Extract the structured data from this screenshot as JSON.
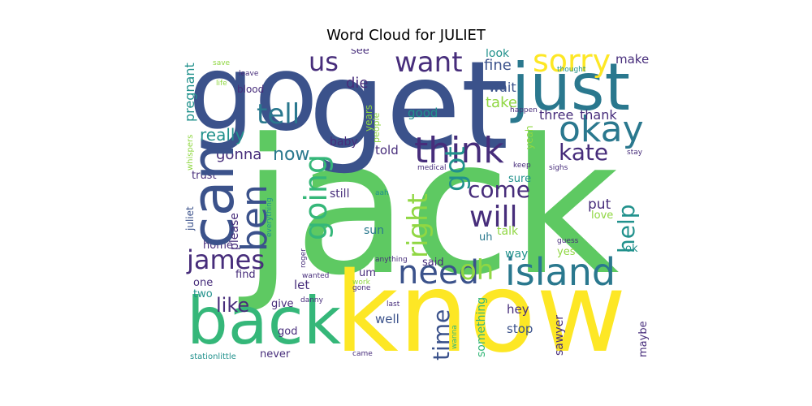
{
  "title": "Word Cloud for JULIET",
  "palette": {
    "yellow": "#fde725",
    "green": "#5ec962",
    "teal": "#21918c",
    "blue": "#3b528b",
    "purple": "#472d7b",
    "dark": "#440154",
    "lightgreen": "#90d743",
    "cyan": "#2a788e",
    "seagreen": "#35b779"
  },
  "words": [
    {
      "text": "jack",
      "color": "green"
    },
    {
      "text": "know",
      "color": "yellow"
    },
    {
      "text": "get",
      "color": "blue"
    },
    {
      "text": "go",
      "color": "blue"
    },
    {
      "text": "just",
      "color": "cyan"
    },
    {
      "text": "back",
      "color": "seagreen"
    },
    {
      "text": "can",
      "color": "blue"
    },
    {
      "text": "island",
      "color": "cyan"
    },
    {
      "text": "okay",
      "color": "cyan"
    },
    {
      "text": "think",
      "color": "purple"
    },
    {
      "text": "need",
      "color": "blue"
    },
    {
      "text": "want",
      "color": "purple"
    },
    {
      "text": "sorry",
      "color": "yellow"
    },
    {
      "text": "tell",
      "color": "cyan"
    },
    {
      "text": "us",
      "color": "purple"
    },
    {
      "text": "james",
      "color": "purple"
    },
    {
      "text": "will",
      "color": "purple"
    },
    {
      "text": "come",
      "color": "purple"
    },
    {
      "text": "going",
      "color": "seagreen"
    },
    {
      "text": "ben",
      "color": "blue"
    },
    {
      "text": "right",
      "color": "lightgreen"
    },
    {
      "text": "got",
      "color": "teal"
    },
    {
      "text": "oh",
      "color": "lightgreen"
    },
    {
      "text": "kate",
      "color": "purple"
    },
    {
      "text": "help",
      "color": "teal"
    },
    {
      "text": "time",
      "color": "blue"
    },
    {
      "text": "like",
      "color": "purple"
    },
    {
      "text": "now",
      "color": "cyan"
    },
    {
      "text": "really",
      "color": "teal"
    },
    {
      "text": "gonna",
      "color": "purple"
    },
    {
      "text": "die",
      "color": "purple"
    },
    {
      "text": "fine",
      "color": "blue"
    },
    {
      "text": "look",
      "color": "teal"
    },
    {
      "text": "make",
      "color": "purple"
    },
    {
      "text": "wait",
      "color": "blue"
    },
    {
      "text": "take",
      "color": "lightgreen"
    },
    {
      "text": "three",
      "color": "purple"
    },
    {
      "text": "thank",
      "color": "purple"
    },
    {
      "text": "good",
      "color": "teal"
    },
    {
      "text": "told",
      "color": "purple"
    },
    {
      "text": "baby",
      "color": "purple"
    },
    {
      "text": "still",
      "color": "purple"
    },
    {
      "text": "sun",
      "color": "cyan"
    },
    {
      "text": "talk",
      "color": "lightgreen"
    },
    {
      "text": "uh",
      "color": "cyan"
    },
    {
      "text": "put",
      "color": "purple"
    },
    {
      "text": "love",
      "color": "lightgreen"
    },
    {
      "text": "sure",
      "color": "teal"
    },
    {
      "text": "way",
      "color": "teal"
    },
    {
      "text": "yes",
      "color": "lightgreen"
    },
    {
      "text": "ok",
      "color": "teal"
    },
    {
      "text": "guess",
      "color": "purple"
    },
    {
      "text": "see",
      "color": "purple"
    },
    {
      "text": "please",
      "color": "purple"
    },
    {
      "text": "trust",
      "color": "purple"
    },
    {
      "text": "home",
      "color": "purple"
    },
    {
      "text": "one",
      "color": "purple"
    },
    {
      "text": "two",
      "color": "teal"
    },
    {
      "text": "find",
      "color": "purple"
    },
    {
      "text": "let",
      "color": "purple"
    },
    {
      "text": "give",
      "color": "purple"
    },
    {
      "text": "god",
      "color": "purple"
    },
    {
      "text": "never",
      "color": "purple"
    },
    {
      "text": "well",
      "color": "blue"
    },
    {
      "text": "hey",
      "color": "purple"
    },
    {
      "text": "stop",
      "color": "blue"
    },
    {
      "text": "said",
      "color": "purple"
    },
    {
      "text": "um",
      "color": "purple"
    },
    {
      "text": "something",
      "color": "seagreen"
    },
    {
      "text": "sawyer",
      "color": "purple"
    },
    {
      "text": "maybe",
      "color": "purple"
    },
    {
      "text": "blood",
      "color": "purple"
    },
    {
      "text": "leave",
      "color": "purple"
    },
    {
      "text": "life",
      "color": "lightgreen"
    },
    {
      "text": "save",
      "color": "lightgreen"
    },
    {
      "text": "pregnant",
      "color": "teal"
    },
    {
      "text": "whispers",
      "color": "lightgreen"
    },
    {
      "text": "juliet",
      "color": "blue"
    },
    {
      "text": "years",
      "color": "lightgreen"
    },
    {
      "text": "people",
      "color": "lightgreen"
    },
    {
      "text": "yeah",
      "color": "lightgreen"
    },
    {
      "text": "thought",
      "color": "teal"
    },
    {
      "text": "happen",
      "color": "purple"
    },
    {
      "text": "keep",
      "color": "purple"
    },
    {
      "text": "medical",
      "color": "purple"
    },
    {
      "text": "stay",
      "color": "purple"
    },
    {
      "text": "sighs",
      "color": "purple"
    },
    {
      "text": "aah",
      "color": "teal"
    },
    {
      "text": "everything",
      "color": "teal"
    },
    {
      "text": "roger",
      "color": "purple"
    },
    {
      "text": "anything",
      "color": "purple"
    },
    {
      "text": "wanted",
      "color": "purple"
    },
    {
      "text": "danny",
      "color": "purple"
    },
    {
      "text": "work",
      "color": "lightgreen"
    },
    {
      "text": "gone",
      "color": "purple"
    },
    {
      "text": "last",
      "color": "purple"
    },
    {
      "text": "wanna",
      "color": "seagreen"
    },
    {
      "text": "came",
      "color": "purple"
    },
    {
      "text": "stationlittle",
      "color": "teal"
    }
  ]
}
